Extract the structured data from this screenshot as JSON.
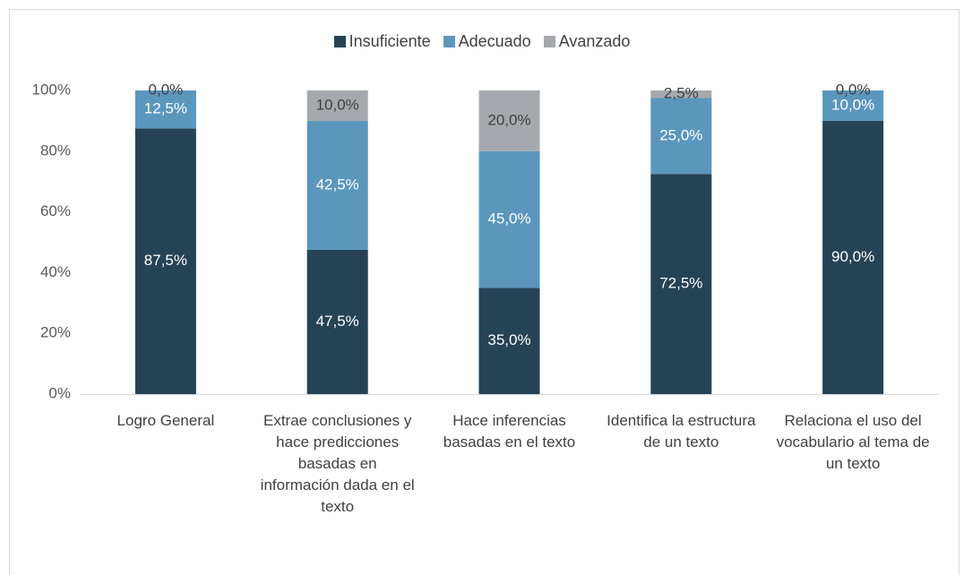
{
  "chart_data": {
    "type": "stacked_bar",
    "categories": [
      "Logro General",
      "Extrae conclusiones y hace predicciones basadas en información dada en el texto",
      "Hace inferencias basadas en el texto",
      "Identifica la estructura de un texto",
      "Relaciona el uso del vocabulario al tema de un texto"
    ],
    "series": [
      {
        "name": "Insuficiente",
        "color": "#264356",
        "values": [
          87.5,
          47.5,
          35,
          72.5,
          90
        ],
        "value_labels": [
          "87,5%",
          "47,5%",
          "35,0%",
          "72,5%",
          "90,0%"
        ]
      },
      {
        "name": "Adecuado",
        "color": "#5b96bd",
        "values": [
          12.5,
          42.5,
          45,
          25,
          10
        ],
        "value_labels": [
          "12,5%",
          "42,5%",
          "45,0%",
          "25,0%",
          "10,0%"
        ]
      },
      {
        "name": "Avanzado",
        "color": "#a5a9ad",
        "values": [
          0,
          10,
          20,
          2.5,
          0
        ],
        "value_labels": [
          "0,0%",
          "10,0%",
          "20,0%",
          "2,5%",
          "0,0%"
        ]
      }
    ],
    "ylim": [
      0,
      100
    ],
    "yticks": [
      {
        "value": 0,
        "label": "0%"
      },
      {
        "value": 20,
        "label": "20%"
      },
      {
        "value": 40,
        "label": "40%"
      },
      {
        "value": 60,
        "label": "60%"
      },
      {
        "value": 80,
        "label": "80%"
      },
      {
        "value": 100,
        "label": "100%"
      }
    ],
    "legend": "top"
  }
}
